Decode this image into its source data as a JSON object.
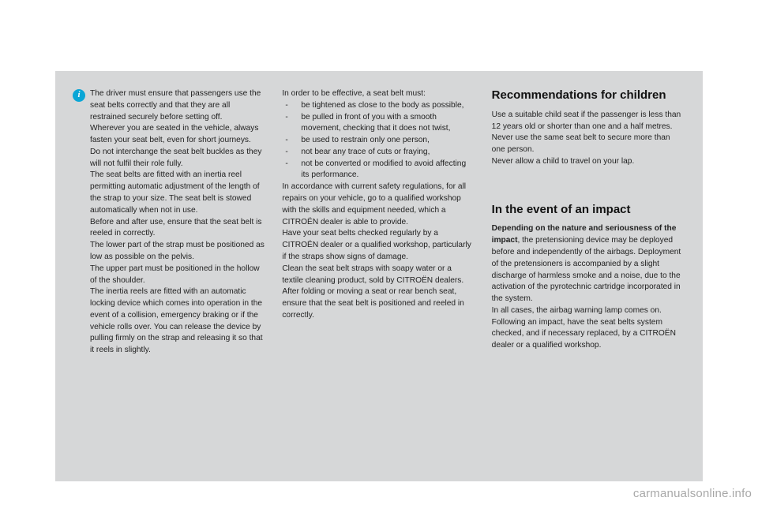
{
  "info_icon_glyph": "i",
  "col1": {
    "p1": "The driver must ensure that passengers use the seat belts correctly and that they are all restrained securely before setting off.",
    "p2": "Wherever you are seated in the vehicle, always fasten your seat belt, even for short journeys.",
    "p3": "Do not interchange the seat belt buckles as they will not fulfil their role fully.",
    "p4": "The seat belts are fitted with an inertia reel permitting automatic adjustment of the length of the strap to your size. The seat belt is stowed automatically when not in use.",
    "p5": "Before and after use, ensure that the seat belt is reeled in correctly.",
    "p6": "The lower part of the strap must be positioned as low as possible on the pelvis.",
    "p7": "The upper part must be positioned in the hollow of the shoulder.",
    "p8": "The inertia reels are fitted with an automatic locking device which comes into operation in the event of a collision, emergency braking or if the vehicle rolls over. You can release the device by pulling firmly on the strap and releasing it so that it reels in slightly."
  },
  "col2": {
    "lead": "In order to be effective, a seat belt must:",
    "items": [
      "be tightened as close to the body as possible,",
      "be pulled in front of you with a smooth movement, checking that it does not twist,",
      "be used to restrain only one person,",
      "not bear any trace of cuts or fraying,",
      "not be converted or modified to avoid affecting its performance."
    ],
    "p1": "In accordance with current safety regulations, for all repairs on your vehicle, go to a qualified workshop with the skills and equipment needed, which a CITROËN dealer is able to provide.",
    "p2": "Have your seat belts checked regularly by a CITROËN dealer or a qualified workshop, particularly if the straps show signs of damage.",
    "p3": "Clean the seat belt straps with soapy water or a textile cleaning product, sold by CITROËN dealers.",
    "p4": "After folding or moving a seat or rear bench seat, ensure that the seat belt is positioned and reeled in correctly."
  },
  "col3": {
    "h1": "Recommendations for children",
    "rec_p1": "Use a suitable child seat if the passenger is less than 12 years old or shorter than one and a half metres.",
    "rec_p2": "Never use the same seat belt to secure more than one person.",
    "rec_p3": "Never allow a child to travel on your lap.",
    "h2": "In the event of an impact",
    "imp_strong": "Depending on the nature and seriousness of the impact",
    "imp_p1_tail": ", the pretensioning device may be deployed before and independently of the airbags. Deployment of the pretensioners is accompanied by a slight discharge of harmless smoke and a noise, due to the activation of the pyrotechnic cartridge incorporated in the system.",
    "imp_p2": "In all cases, the airbag warning lamp comes on.",
    "imp_p3": "Following an impact, have the seat belts system checked, and if necessary replaced, by a CITROËN dealer or a qualified workshop."
  },
  "watermark": "carmanualsonline.info"
}
